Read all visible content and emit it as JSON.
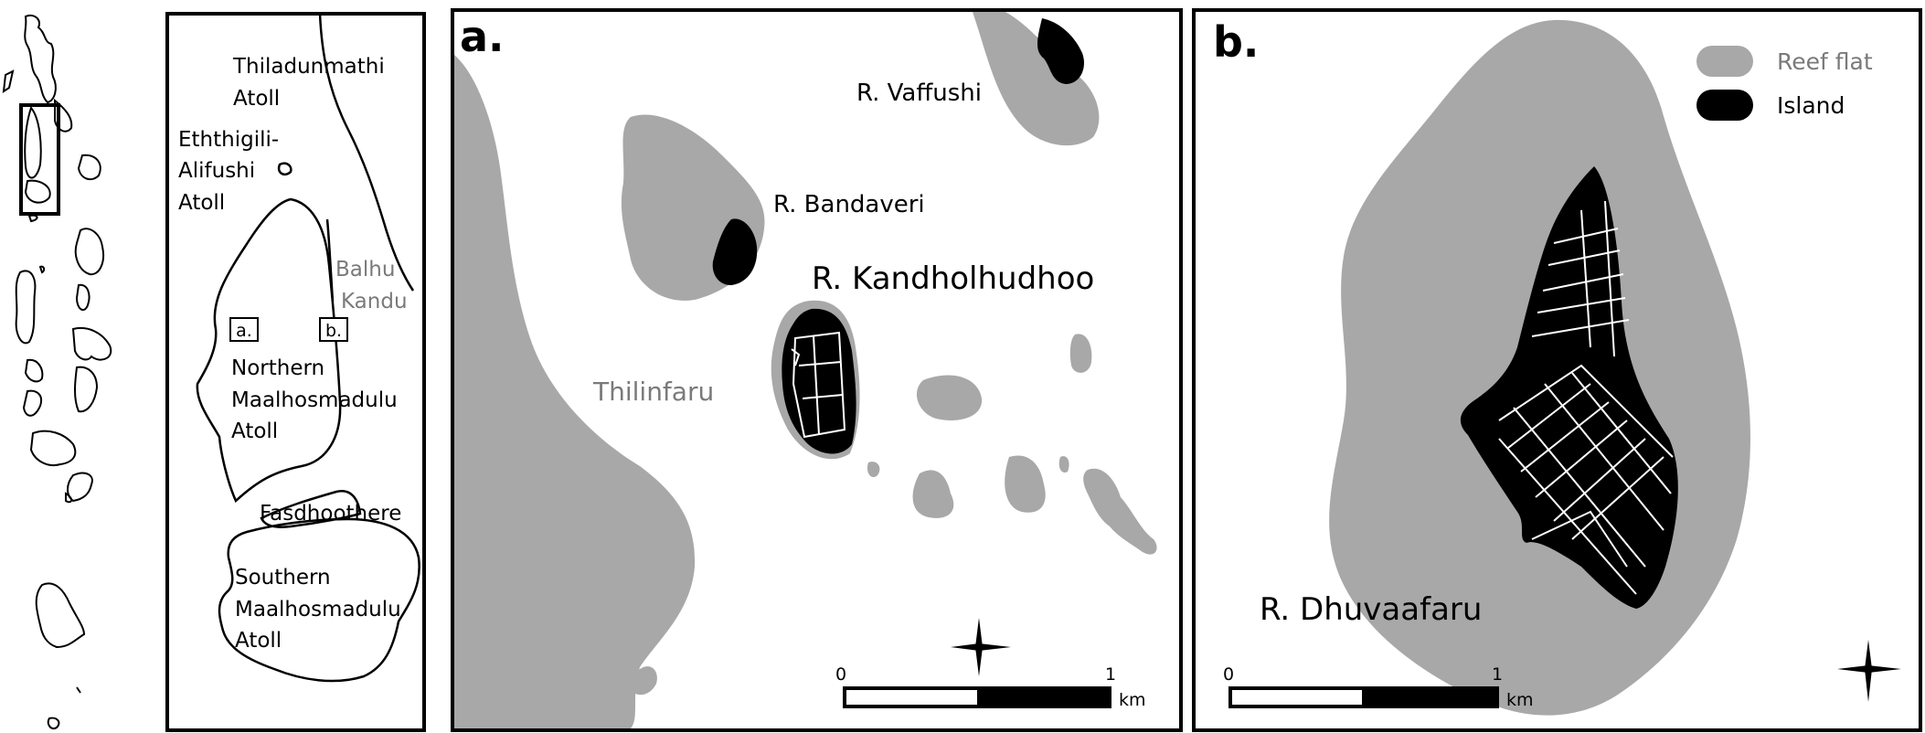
{
  "overview": {
    "labels": {
      "thiladunmathi_1": "Thiladunmathi",
      "thiladunmathi_2": "Atoll",
      "eththigili_1": "Eththigili-",
      "eththigili_2": "Alifushi",
      "eththigili_3": "Atoll",
      "balhu_1": "Balhu",
      "balhu_2": "Kandu",
      "box_a": "a.",
      "box_b": "b.",
      "northern_1": "Northern",
      "northern_2": "Maalhosmadulu",
      "northern_3": "Atoll",
      "fasdhoothere": "Fasdhoothere",
      "southern_1": "Southern",
      "southern_2": "Maalhosmadulu",
      "southern_3": "Atoll"
    }
  },
  "panel_a": {
    "letter": "a.",
    "labels": {
      "vaffushi": "R. Vaffushi",
      "bandaveri": "R. Bandaveri",
      "kandholhudhoo": "R. Kandholhudhoo",
      "thilinfaru": "Thilinfaru"
    },
    "scale": {
      "start": "0",
      "end": "1",
      "unit": "km"
    }
  },
  "panel_b": {
    "letter": "b.",
    "labels": {
      "dhuvaafaru": "R. Dhuvaafaru"
    },
    "legend": {
      "reef": "Reef flat",
      "island": "Island"
    },
    "scale": {
      "start": "0",
      "end": "1",
      "unit": "km"
    }
  },
  "colors": {
    "reef": "#a8a8a8",
    "island": "#000000",
    "frame": "#000000",
    "grey_text": "#7a7a7a"
  }
}
